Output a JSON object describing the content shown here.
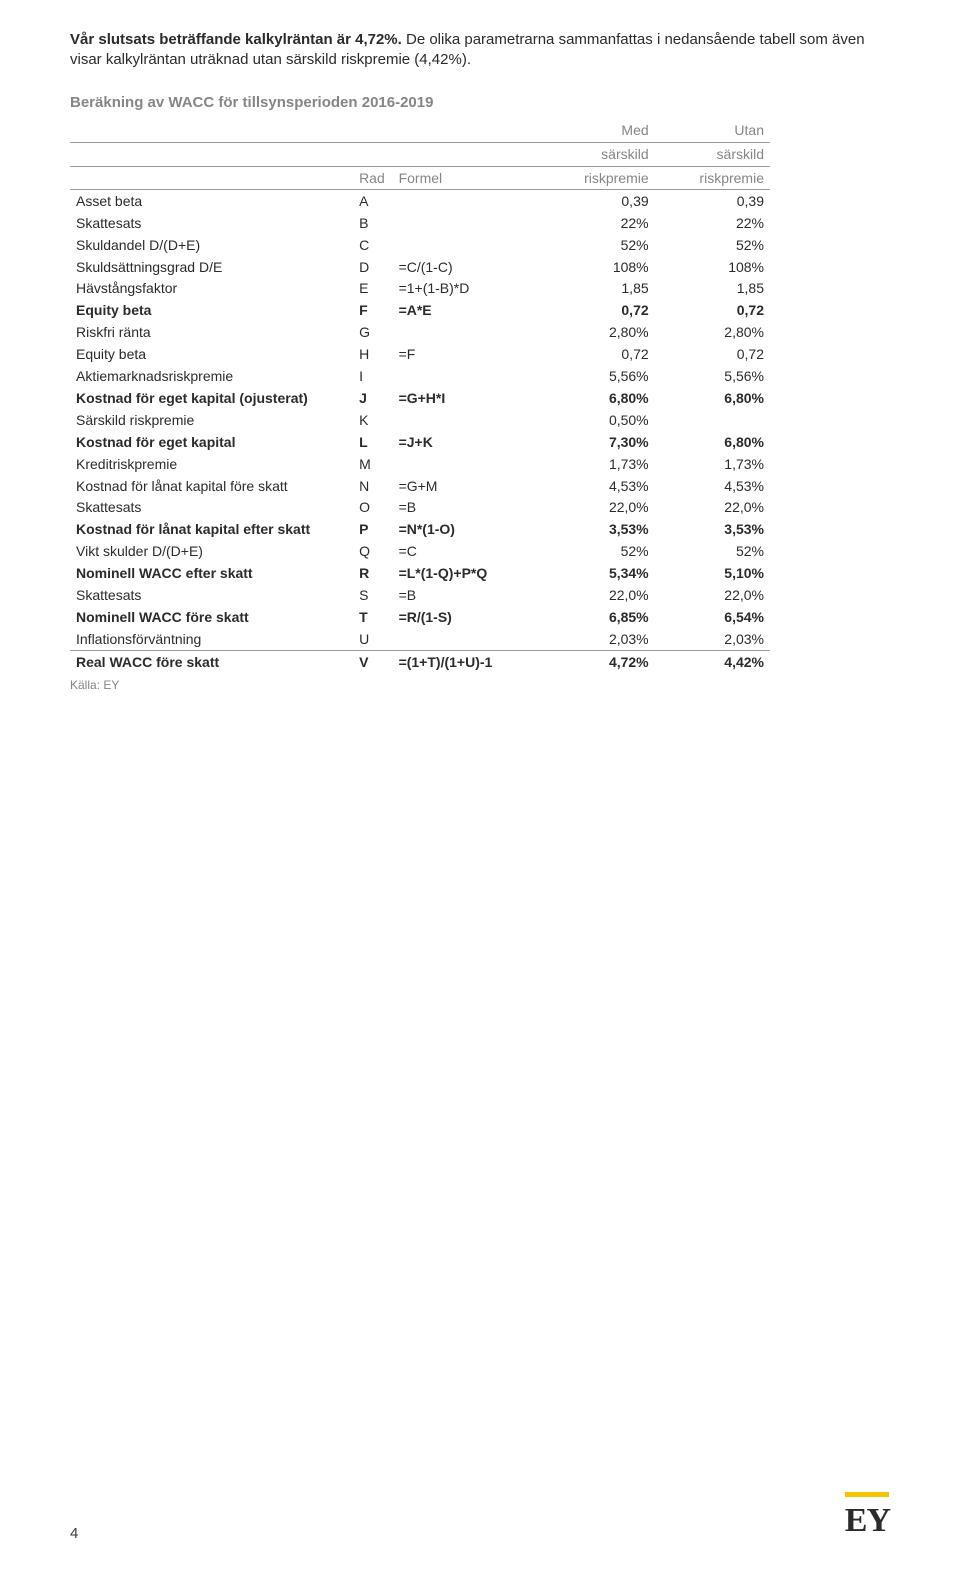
{
  "intro": {
    "lead_bold": "Vår slutsats beträffande kalkylräntan är 4,72%.",
    "rest": " De olika parametrarna sammanfattas i nedansående tabell som även visar kalkylräntan uträknad utan särskild riskpremie (4,42%)."
  },
  "table": {
    "title": "Beräkning av WACC för tillsynsperioden 2016-2019",
    "header": {
      "rad": "Rad",
      "formel": "Formel",
      "col1_top": "Med",
      "col1_mid": "särskild",
      "col1_bot": "riskpremie",
      "col2_top": "Utan",
      "col2_mid": "särskild",
      "col2_bot": "riskpremie"
    },
    "rows": [
      {
        "label": "Asset beta",
        "rad": "A",
        "formel": "",
        "v1": "0,39",
        "v2": "0,39",
        "bold": false
      },
      {
        "label": "Skattesats",
        "rad": "B",
        "formel": "",
        "v1": "22%",
        "v2": "22%",
        "bold": false
      },
      {
        "label": "Skuldandel D/(D+E)",
        "rad": "C",
        "formel": "",
        "v1": "52%",
        "v2": "52%",
        "bold": false
      },
      {
        "label": "Skuldsättningsgrad D/E",
        "rad": "D",
        "formel": "=C/(1-C)",
        "v1": "108%",
        "v2": "108%",
        "bold": false
      },
      {
        "label": "Hävstångsfaktor",
        "rad": "E",
        "formel": "=1+(1-B)*D",
        "v1": "1,85",
        "v2": "1,85",
        "bold": false
      },
      {
        "label": "Equity beta",
        "rad": "F",
        "formel": "=A*E",
        "v1": "0,72",
        "v2": "0,72",
        "bold": true
      },
      {
        "label": "Riskfri ränta",
        "rad": "G",
        "formel": "",
        "v1": "2,80%",
        "v2": "2,80%",
        "bold": false
      },
      {
        "label": "Equity beta",
        "rad": "H",
        "formel": "=F",
        "v1": "0,72",
        "v2": "0,72",
        "bold": false
      },
      {
        "label": "Aktiemarknadsriskpremie",
        "rad": "I",
        "formel": "",
        "v1": "5,56%",
        "v2": "5,56%",
        "bold": false
      },
      {
        "label": "Kostnad för eget kapital (ojusterat)",
        "rad": "J",
        "formel": "=G+H*I",
        "v1": "6,80%",
        "v2": "6,80%",
        "bold": true
      },
      {
        "label": "Särskild riskpremie",
        "rad": "K",
        "formel": "",
        "v1": "0,50%",
        "v2": "",
        "bold": false
      },
      {
        "label": "Kostnad för eget kapital",
        "rad": "L",
        "formel": "=J+K",
        "v1": "7,30%",
        "v2": "6,80%",
        "bold": true
      },
      {
        "label": "Kreditriskpremie",
        "rad": "M",
        "formel": "",
        "v1": "1,73%",
        "v2": "1,73%",
        "bold": false
      },
      {
        "label": "Kostnad för lånat kapital före skatt",
        "rad": "N",
        "formel": "=G+M",
        "v1": "4,53%",
        "v2": "4,53%",
        "bold": false
      },
      {
        "label": "Skattesats",
        "rad": "O",
        "formel": "=B",
        "v1": "22,0%",
        "v2": "22,0%",
        "bold": false
      },
      {
        "label": "Kostnad för lånat kapital efter skatt",
        "rad": "P",
        "formel": "=N*(1-O)",
        "v1": "3,53%",
        "v2": "3,53%",
        "bold": true
      },
      {
        "label": "Vikt skulder D/(D+E)",
        "rad": "Q",
        "formel": "=C",
        "v1": "52%",
        "v2": "52%",
        "bold": false
      },
      {
        "label": "Nominell WACC efter skatt",
        "rad": "R",
        "formel": "=L*(1-Q)+P*Q",
        "v1": "5,34%",
        "v2": "5,10%",
        "bold": true
      },
      {
        "label": "Skattesats",
        "rad": "S",
        "formel": "=B",
        "v1": "22,0%",
        "v2": "22,0%",
        "bold": false
      },
      {
        "label": "Nominell WACC före skatt",
        "rad": "T",
        "formel": "=R/(1-S)",
        "v1": "6,85%",
        "v2": "6,54%",
        "bold": true
      },
      {
        "label": "Inflationsförväntning",
        "rad": "U",
        "formel": "",
        "v1": "2,03%",
        "v2": "2,03%",
        "bold": false
      },
      {
        "label": "Real WACC före skatt",
        "rad": "V",
        "formel": "=(1+T)/(1+U)-1",
        "v1": "4,72%",
        "v2": "4,42%",
        "bold": true,
        "divider": true
      }
    ],
    "source": "Källa: EY"
  },
  "footer": {
    "page": "4",
    "logo": "EY"
  },
  "colors": {
    "text": "#2b2b2b",
    "muted": "#868686",
    "rule": "#9a9a9a",
    "logo_bar": "#f3c500",
    "background": "#ffffff"
  }
}
